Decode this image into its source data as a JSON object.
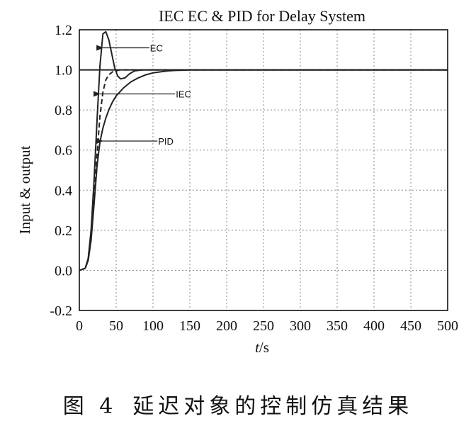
{
  "chart_data": {
    "type": "line",
    "title": "IEC EC & PID for Delay System",
    "xlabel_var": "t",
    "xlabel_unit": "/s",
    "ylabel": "Input & output",
    "xlim": [
      0,
      500
    ],
    "ylim": [
      -0.2,
      1.2
    ],
    "xticks": [
      0,
      50,
      100,
      150,
      200,
      250,
      300,
      350,
      400,
      450,
      500
    ],
    "yticks": [
      -0.2,
      0.0,
      0.2,
      0.4,
      0.6,
      0.8,
      1.0,
      1.2
    ],
    "ytick_labels": [
      "-0.2",
      "0.0",
      "0.2",
      "0.4",
      "0.6",
      "0.8",
      "1.0",
      "1.2"
    ],
    "grid": true,
    "series": [
      {
        "name": "EC",
        "style": "solid",
        "x": [
          0,
          8,
          12,
          16,
          20,
          24,
          28,
          32,
          36,
          40,
          44,
          48,
          52,
          56,
          62,
          68,
          75,
          85,
          100,
          120,
          150,
          200,
          500
        ],
        "y": [
          0,
          0.01,
          0.06,
          0.2,
          0.45,
          0.75,
          1.02,
          1.18,
          1.19,
          1.15,
          1.08,
          1.01,
          0.97,
          0.955,
          0.96,
          0.98,
          0.995,
          1.0,
          1.0,
          1.0,
          1.0,
          1.0,
          1.0
        ]
      },
      {
        "name": "IEC",
        "style": "dashed",
        "x": [
          0,
          8,
          12,
          16,
          20,
          24,
          28,
          32,
          36,
          40,
          45,
          50,
          55,
          60,
          70,
          80,
          100,
          150,
          500
        ],
        "y": [
          0,
          0.01,
          0.05,
          0.16,
          0.36,
          0.58,
          0.77,
          0.89,
          0.95,
          0.975,
          0.99,
          0.995,
          1.0,
          1.0,
          1.0,
          1.0,
          1.0,
          1.0,
          1.0
        ]
      },
      {
        "name": "PID",
        "style": "solid",
        "x": [
          0,
          8,
          12,
          16,
          20,
          24,
          28,
          32,
          36,
          40,
          45,
          50,
          60,
          70,
          80,
          90,
          100,
          110,
          120,
          130,
          140,
          150,
          170,
          200,
          500
        ],
        "y": [
          0,
          0.01,
          0.05,
          0.15,
          0.33,
          0.52,
          0.64,
          0.71,
          0.76,
          0.8,
          0.84,
          0.87,
          0.91,
          0.94,
          0.96,
          0.975,
          0.985,
          0.99,
          0.995,
          0.997,
          0.998,
          1.0,
          1.0,
          1.0,
          1.0
        ]
      }
    ],
    "annotations": [
      {
        "text": "EC",
        "x": 28,
        "y": 1.11,
        "text_x": 95,
        "text_y": 1.11
      },
      {
        "text": "IEC",
        "x": 24,
        "y": 0.88,
        "text_x": 130,
        "text_y": 0.88
      },
      {
        "text": "PID",
        "x": 28,
        "y": 0.645,
        "text_x": 106,
        "text_y": 0.645
      }
    ],
    "setpoint": 1.0
  },
  "caption": {
    "figure_label": "图 4",
    "text": "延迟对象的控制仿真结果"
  },
  "colors": {
    "line": "#222222",
    "grid": "#888888",
    "axis": "#111111"
  }
}
